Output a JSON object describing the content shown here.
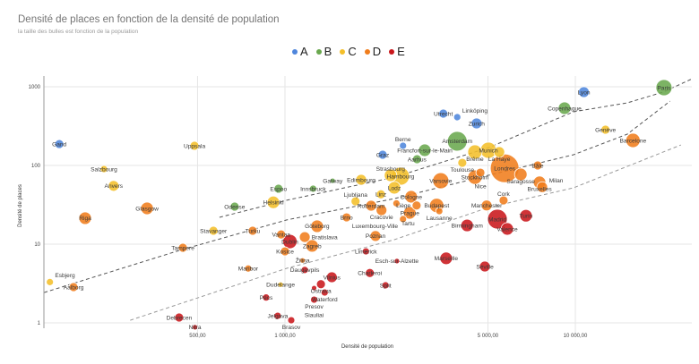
{
  "chart_data": {
    "type": "scatter",
    "title": "Densité de places en fonction de la densité de population",
    "subtitle": "la taille des bulles est fonction de la population",
    "xlabel": "Densité de population",
    "ylabel": "Densité de places",
    "xscale": "log",
    "yscale": "log",
    "xlim": [
      148,
      25200
    ],
    "ylim": [
      0.7,
      1370
    ],
    "grid": true,
    "legend_position": "top",
    "x_ticks": [
      {
        "value": 500,
        "label": "500,00"
      },
      {
        "value": 1000,
        "label": "1 000,00"
      },
      {
        "value": 5000,
        "label": "5 000,00"
      },
      {
        "value": 10000,
        "label": "10 000,00"
      }
    ],
    "y_ticks": [
      {
        "value": 1000,
        "label": "1000"
      },
      {
        "value": 100,
        "label": "100"
      },
      {
        "value": 10,
        "label": "10"
      },
      {
        "value": 1,
        "label": "1"
      }
    ],
    "groups": [
      {
        "name": "A",
        "color": "#4f86dc"
      },
      {
        "name": "B",
        "color": "#6aa84f"
      },
      {
        "name": "C",
        "color": "#f4bf2a"
      },
      {
        "name": "D",
        "color": "#f07d1c"
      },
      {
        "name": "E",
        "color": "#c9171b"
      }
    ],
    "points": [
      {
        "name": "Gand",
        "x": 167,
        "y": 187,
        "group": "A",
        "size": 5
      },
      {
        "name": "Graz",
        "x": 2170,
        "y": 137,
        "group": "A",
        "size": 5
      },
      {
        "name": "Berne",
        "x": 2550,
        "y": 178,
        "group": "A",
        "size": 4
      },
      {
        "name": "Utrecht",
        "x": 3510,
        "y": 456,
        "group": "A",
        "size": 5
      },
      {
        "name": "Linköping",
        "x": 3920,
        "y": 411,
        "group": "A",
        "size": 4
      },
      {
        "name": "Zurich",
        "x": 4570,
        "y": 342,
        "group": "A",
        "size": 6
      },
      {
        "name": "Lyon",
        "x": 10700,
        "y": 855,
        "group": "A",
        "size": 6
      },
      {
        "name": "Odense",
        "x": 671,
        "y": 30,
        "group": "B",
        "size": 5
      },
      {
        "name": "Espoo",
        "x": 950,
        "y": 50.7,
        "group": "B",
        "size": 5
      },
      {
        "name": "Innsbruck",
        "x": 1250,
        "y": 50.7,
        "group": "B",
        "size": 4
      },
      {
        "name": "Galway",
        "x": 1460,
        "y": 64,
        "group": "B",
        "size": 3
      },
      {
        "name": "Francfort-sur-le-Main",
        "x": 3030,
        "y": 156,
        "group": "B",
        "size": 7
      },
      {
        "name": "Aarhus",
        "x": 2850,
        "y": 120,
        "group": "B",
        "size": 5
      },
      {
        "name": "Amsterdam",
        "x": 3920,
        "y": 203,
        "group": "B",
        "size": 11
      },
      {
        "name": "Copenhague",
        "x": 9180,
        "y": 534,
        "group": "B",
        "size": 7
      },
      {
        "name": "Paris",
        "x": 20200,
        "y": 974,
        "group": "B",
        "size": 9
      },
      {
        "name": "Uppsala",
        "x": 488,
        "y": 178,
        "group": "C",
        "size": 5
      },
      {
        "name": "Salzbourg",
        "x": 238,
        "y": 90,
        "group": "C",
        "size": 4
      },
      {
        "name": "Anvers",
        "x": 257,
        "y": 55,
        "group": "C",
        "size": 6
      },
      {
        "name": "Esbjerg",
        "x": 155,
        "y": 3.3,
        "group": "C",
        "size": 4
      },
      {
        "name": "Stavanger",
        "x": 567,
        "y": 14.8,
        "group": "C",
        "size": 5
      },
      {
        "name": "Helsinki",
        "x": 912,
        "y": 34,
        "group": "C",
        "size": 7
      },
      {
        "name": "Dudelange",
        "x": 966,
        "y": 3.06,
        "group": "C",
        "size": 3
      },
      {
        "name": "Edimbourg",
        "x": 1830,
        "y": 65.8,
        "group": "C",
        "size": 6
      },
      {
        "name": "Ljubljana",
        "x": 1750,
        "y": 35,
        "group": "C",
        "size": 5
      },
      {
        "name": "Strasbourg",
        "x": 2310,
        "y": 75,
        "group": "C",
        "size": 7
      },
      {
        "name": "Hambourg",
        "x": 2500,
        "y": 73,
        "group": "C",
        "size": 10
      },
      {
        "name": "Lodz",
        "x": 2380,
        "y": 52,
        "group": "C",
        "size": 7
      },
      {
        "name": "Linz",
        "x": 2140,
        "y": 43,
        "group": "C",
        "size": 5
      },
      {
        "name": "Toulouse",
        "x": 4080,
        "y": 108,
        "group": "C",
        "size": 5
      },
      {
        "name": "Brême",
        "x": 4510,
        "y": 148,
        "group": "C",
        "size": 8
      },
      {
        "name": "Munich",
        "x": 5020,
        "y": 156,
        "group": "C",
        "size": 9
      },
      {
        "name": "La Haye",
        "x": 5470,
        "y": 148,
        "group": "C",
        "size": 6
      },
      {
        "name": "Genève",
        "x": 12700,
        "y": 285,
        "group": "C",
        "size": 5
      },
      {
        "name": "Glasgow",
        "x": 335,
        "y": 28.5,
        "group": "D",
        "size": 7
      },
      {
        "name": "Riga",
        "x": 205,
        "y": 21.4,
        "group": "D",
        "size": 7
      },
      {
        "name": "Aalborg",
        "x": 187,
        "y": 2.85,
        "group": "D",
        "size": 5
      },
      {
        "name": "Tampere",
        "x": 445,
        "y": 9.0,
        "group": "D",
        "size": 5
      },
      {
        "name": "Turku",
        "x": 774,
        "y": 14.8,
        "group": "D",
        "size": 5
      },
      {
        "name": "Maribor",
        "x": 747,
        "y": 4.9,
        "group": "D",
        "size": 4
      },
      {
        "name": "Vantaa",
        "x": 970,
        "y": 13.3,
        "group": "D",
        "size": 5
      },
      {
        "name": "Bratislava",
        "x": 1170,
        "y": 12.3,
        "group": "D",
        "size": 6
      },
      {
        "name": "Zagreb",
        "x": 1240,
        "y": 9.5,
        "group": "D",
        "size": 7
      },
      {
        "name": "Kosice",
        "x": 1000,
        "y": 8.1,
        "group": "D",
        "size": 5
      },
      {
        "name": "Göteborg",
        "x": 1290,
        "y": 16.9,
        "group": "D",
        "size": 7
      },
      {
        "name": "Žilina",
        "x": 1150,
        "y": 6.2,
        "group": "D",
        "size": 3
      },
      {
        "name": "Brno",
        "x": 1630,
        "y": 21.9,
        "group": "D",
        "size": 5
      },
      {
        "name": "Rotterdam",
        "x": 1980,
        "y": 30.8,
        "group": "D",
        "size": 6
      },
      {
        "name": "Cracovie",
        "x": 2150,
        "y": 27,
        "group": "D",
        "size": 6
      },
      {
        "name": "Poznan",
        "x": 2050,
        "y": 12.7,
        "group": "D",
        "size": 6
      },
      {
        "name": "Tartu",
        "x": 2420,
        "y": 33,
        "group": "D",
        "size": 4
      },
      {
        "name": "Cologne",
        "x": 2720,
        "y": 40,
        "group": "D",
        "size": 7
      },
      {
        "name": "Liège",
        "x": 2840,
        "y": 31,
        "group": "D",
        "size": 5
      },
      {
        "name": "Prague",
        "x": 2690,
        "y": 25,
        "group": "D",
        "size": 7
      },
      {
        "name": "Luxembourg-Ville",
        "x": 2550,
        "y": 20.8,
        "group": "D",
        "size": 4
      },
      {
        "name": "Budapest",
        "x": 3330,
        "y": 31,
        "group": "D",
        "size": 8
      },
      {
        "name": "Lausanne",
        "x": 3400,
        "y": 26.3,
        "group": "D",
        "size": 4
      },
      {
        "name": "Varsovie",
        "x": 3440,
        "y": 64,
        "group": "D",
        "size": 9
      },
      {
        "name": "Nice",
        "x": 4710,
        "y": 81,
        "group": "D",
        "size": 5
      },
      {
        "name": "Stockholm",
        "x": 4510,
        "y": 71,
        "group": "D",
        "size": 8
      },
      {
        "name": "Londres",
        "x": 5710,
        "y": 92,
        "group": "D",
        "size": 16
      },
      {
        "name": "Saragosse",
        "x": 6490,
        "y": 77,
        "group": "D",
        "size": 7
      },
      {
        "name": "Bâle",
        "x": 7420,
        "y": 100,
        "group": "D",
        "size": 5
      },
      {
        "name": "Bruxelles",
        "x": 7530,
        "y": 61,
        "group": "D",
        "size": 7
      },
      {
        "name": "Milan",
        "x": 7690,
        "y": 53,
        "group": "D",
        "size": 6
      },
      {
        "name": "Manchester",
        "x": 4950,
        "y": 31,
        "group": "D",
        "size": 6
      },
      {
        "name": "Cork",
        "x": 5660,
        "y": 36,
        "group": "D",
        "size": 5
      },
      {
        "name": "Barcelone",
        "x": 15800,
        "y": 208,
        "group": "D",
        "size": 8
      },
      {
        "name": "Debrecen",
        "x": 432,
        "y": 1.17,
        "group": "E",
        "size": 5
      },
      {
        "name": "Nitra",
        "x": 490,
        "y": 0.88,
        "group": "E",
        "size": 3
      },
      {
        "name": "Pécs",
        "x": 861,
        "y": 2.1,
        "group": "E",
        "size": 4
      },
      {
        "name": "Jelgava",
        "x": 944,
        "y": 1.23,
        "group": "E",
        "size": 4
      },
      {
        "name": "Brasov",
        "x": 1051,
        "y": 1.08,
        "group": "E",
        "size": 4
      },
      {
        "name": "Dublin",
        "x": 1040,
        "y": 10.8,
        "group": "E",
        "size": 8
      },
      {
        "name": "Daugavpils",
        "x": 1170,
        "y": 4.7,
        "group": "E",
        "size": 4
      },
      {
        "name": "Vilnius",
        "x": 1450,
        "y": 3.8,
        "group": "E",
        "size": 6
      },
      {
        "name": "Ostrava",
        "x": 1330,
        "y": 3.1,
        "group": "E",
        "size": 5
      },
      {
        "name": "Siauliai",
        "x": 1260,
        "y": 2.77,
        "group": "E",
        "size": 3
      },
      {
        "name": "Waterford",
        "x": 1370,
        "y": 2.43,
        "group": "E",
        "size": 4
      },
      {
        "name": "Presov",
        "x": 1260,
        "y": 1.97,
        "group": "E",
        "size": 4
      },
      {
        "name": "Limerick",
        "x": 1900,
        "y": 8.1,
        "group": "E",
        "size": 4
      },
      {
        "name": "Charleroi",
        "x": 1960,
        "y": 4.3,
        "group": "E",
        "size": 5
      },
      {
        "name": "Split",
        "x": 2220,
        "y": 3.0,
        "group": "E",
        "size": 4
      },
      {
        "name": "Esch-sur-Alzette",
        "x": 2430,
        "y": 6.1,
        "group": "E",
        "size": 3
      },
      {
        "name": "Marseille",
        "x": 3590,
        "y": 6.6,
        "group": "E",
        "size": 7
      },
      {
        "name": "Séville",
        "x": 4880,
        "y": 5.2,
        "group": "E",
        "size": 6
      },
      {
        "name": "Birmingham",
        "x": 4240,
        "y": 17.3,
        "group": "E",
        "size": 7
      },
      {
        "name": "Madrid",
        "x": 5390,
        "y": 20.8,
        "group": "E",
        "size": 11
      },
      {
        "name": "Valence",
        "x": 5830,
        "y": 15.6,
        "group": "E",
        "size": 7
      },
      {
        "name": "Turin",
        "x": 6760,
        "y": 23,
        "group": "E",
        "size": 7
      }
    ],
    "trendlines": [
      {
        "color": "#555555",
        "points": [
          [
            148,
            2.43
          ],
          [
            432,
            8.3
          ],
          [
            1014,
            20.3
          ],
          [
            2380,
            37.9
          ],
          [
            5020,
            75
          ],
          [
            9860,
            137
          ],
          [
            15100,
            250
          ],
          [
            21200,
            657
          ]
        ]
      },
      {
        "color": "#555555",
        "points": [
          [
            595,
            21.9
          ],
          [
            1014,
            36.1
          ],
          [
            2380,
            71
          ],
          [
            5020,
            168
          ],
          [
            9860,
            481
          ],
          [
            15100,
            624
          ],
          [
            20050,
            855
          ],
          [
            25200,
            1260
          ]
        ]
      },
      {
        "color": "#999999",
        "points": [
          [
            293,
            1.08
          ],
          [
            1014,
            4.94
          ],
          [
            2380,
            11.4
          ],
          [
            5020,
            29.2
          ],
          [
            9860,
            52
          ],
          [
            23100,
            182
          ]
        ]
      }
    ]
  }
}
